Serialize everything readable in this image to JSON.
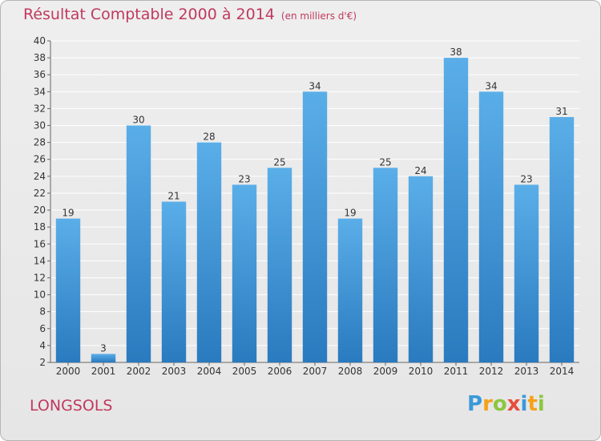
{
  "header": {
    "title": "Résultat Comptable 2000 à 2014",
    "unit": "(en milliers d'€)"
  },
  "footer": {
    "commune": "LONGSOLS",
    "logo": [
      "P",
      "r",
      "o",
      "x",
      "i",
      "t",
      "i"
    ]
  },
  "colors": {
    "bar_top": "#5aaee8",
    "bar_bottom": "#2a7abf",
    "title": "#c0395f",
    "grid": "#ffffff"
  },
  "chart_data": {
    "type": "bar",
    "title": "Résultat Comptable 2000 à 2014",
    "subtitle": "(en milliers d'€)",
    "xlabel": "",
    "ylabel": "",
    "categories": [
      "2000",
      "2001",
      "2002",
      "2003",
      "2004",
      "2005",
      "2006",
      "2007",
      "2008",
      "2009",
      "2010",
      "2011",
      "2012",
      "2013",
      "2014"
    ],
    "values": [
      19,
      3,
      30,
      21,
      28,
      23,
      25,
      34,
      19,
      25,
      24,
      38,
      34,
      23,
      31
    ],
    "ylim": [
      2,
      40
    ],
    "yticks": [
      2,
      4,
      6,
      8,
      10,
      12,
      14,
      16,
      18,
      20,
      22,
      24,
      26,
      28,
      30,
      32,
      34,
      36,
      38,
      40
    ],
    "grid": true,
    "legend": "none"
  }
}
